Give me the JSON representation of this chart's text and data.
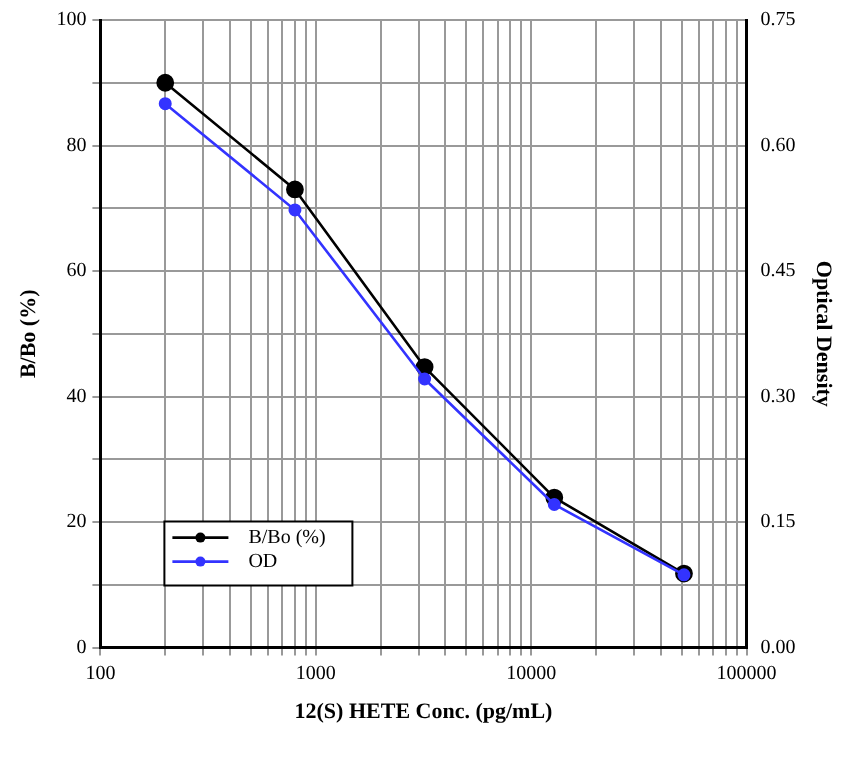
{
  "chart_data": {
    "type": "line",
    "xlabel": "12(S) HETE Conc. (pg/mL)",
    "ylabel": "B/Bo (%)",
    "y2label": "Optical Density",
    "log": "x",
    "x": [
      200,
      800,
      3200,
      12800,
      51200
    ],
    "xlim": [
      100,
      100000
    ],
    "xticks": [
      100,
      {
        "value": 200,
        "label": null
      },
      {
        "value": 300,
        "label": null
      },
      {
        "value": 400,
        "label": null
      },
      {
        "value": 500,
        "label": null
      },
      {
        "value": 600,
        "label": null
      },
      {
        "value": 700,
        "label": null
      },
      {
        "value": 800,
        "label": null
      },
      {
        "value": 900,
        "label": null
      },
      1000,
      {
        "value": 2000,
        "label": null
      },
      {
        "value": 3000,
        "label": null
      },
      {
        "value": 4000,
        "label": null
      },
      {
        "value": 5000,
        "label": null
      },
      {
        "value": 6000,
        "label": null
      },
      {
        "value": 7000,
        "label": null
      },
      {
        "value": 8000,
        "label": null
      },
      {
        "value": 9000,
        "label": null
      },
      10000,
      {
        "value": 20000,
        "label": null
      },
      {
        "value": 30000,
        "label": null
      },
      {
        "value": 40000,
        "label": null
      },
      {
        "value": 50000,
        "label": null
      },
      {
        "value": 60000,
        "label": null
      },
      {
        "value": 70000,
        "label": null
      },
      {
        "value": 80000,
        "label": null
      },
      {
        "value": 90000,
        "label": null
      },
      100000
    ],
    "ylim": [
      0,
      100
    ],
    "yticks": [
      0,
      {
        "value": 10,
        "label": null
      },
      20,
      {
        "value": 30,
        "label": null
      },
      40,
      {
        "value": 50,
        "label": null
      },
      60,
      {
        "value": 70,
        "label": null
      },
      80,
      {
        "value": 90,
        "label": null
      },
      100
    ],
    "y2lim": [
      0,
      0.75
    ],
    "y2ticks": [
      {
        "value": 0,
        "label": "0.00"
      },
      {
        "value": 0.15,
        "label": "0.15"
      },
      {
        "value": 0.3,
        "label": "0.30"
      },
      {
        "value": 0.45,
        "label": "0.45"
      },
      {
        "value": 0.6,
        "label": "0.60"
      },
      {
        "value": 0.75,
        "label": "0.75"
      }
    ],
    "grid": true,
    "legend": "bottom left",
    "marker": "circle",
    "line_style": "solid",
    "series": [
      {
        "name": "B/Bo (%)",
        "color": "#000000",
        "values": [
          90,
          73,
          44.7,
          23.9,
          11.8
        ]
      },
      {
        "name": "OD",
        "color": "#3333ff",
        "axis": "y2",
        "values": [
          0.65,
          0.523,
          0.321,
          0.171,
          0.087
        ]
      }
    ]
  }
}
